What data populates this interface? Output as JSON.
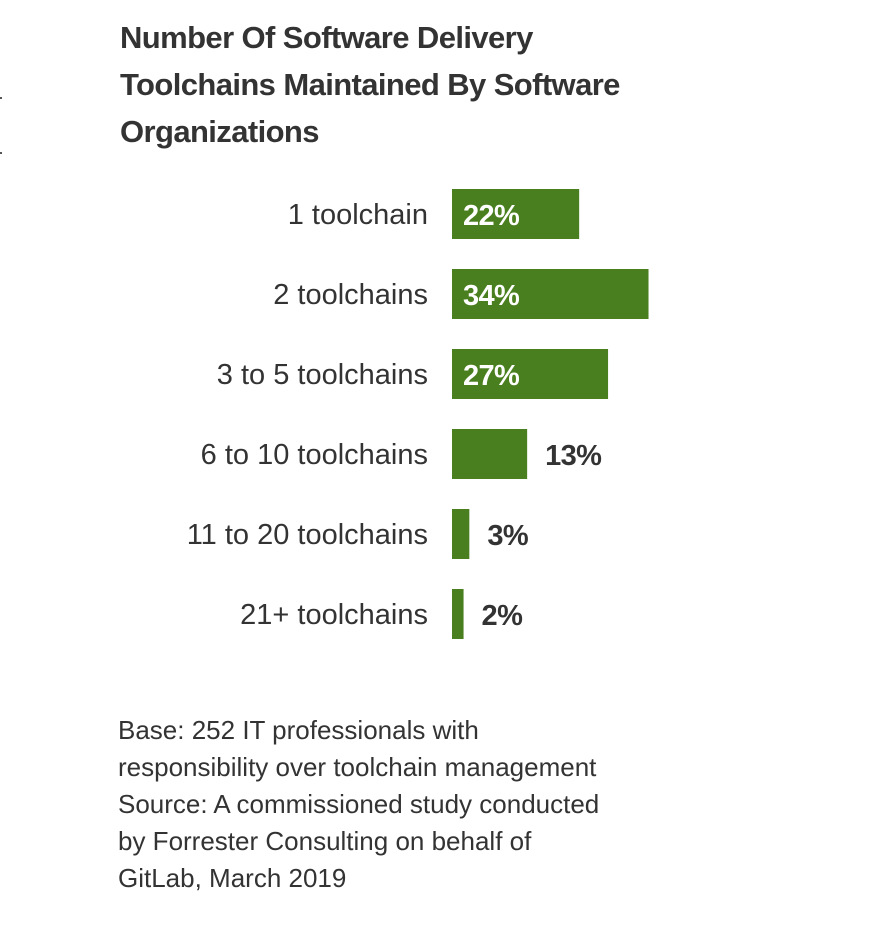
{
  "chart_data": {
    "type": "bar",
    "orientation": "horizontal",
    "title_lines": [
      "Number Of Software Delivery",
      "Toolchains Maintained By Software",
      "Organizations"
    ],
    "categories": [
      "1 toolchain",
      "2 toolchains",
      "3 to 5 toolchains",
      "6 to 10 toolchains",
      "11 to 20 toolchains",
      "21+ toolchains"
    ],
    "values": [
      22,
      34,
      27,
      13,
      3,
      2
    ],
    "value_labels": [
      "22%",
      "34%",
      "27%",
      "13%",
      "3%",
      "2%"
    ],
    "xlim": [
      0,
      100
    ],
    "grid": false,
    "legend": "none",
    "bar_color": "#4a7f1f",
    "inside_label_color": "#ffffff",
    "outside_label_color": "#333333"
  },
  "notes": [
    "Base: 252 IT professionals with",
    "responsibility over toolchain management",
    "Source: A commissioned study conducted",
    "by Forrester Consulting on behalf of",
    "GitLab, March 2019"
  ]
}
